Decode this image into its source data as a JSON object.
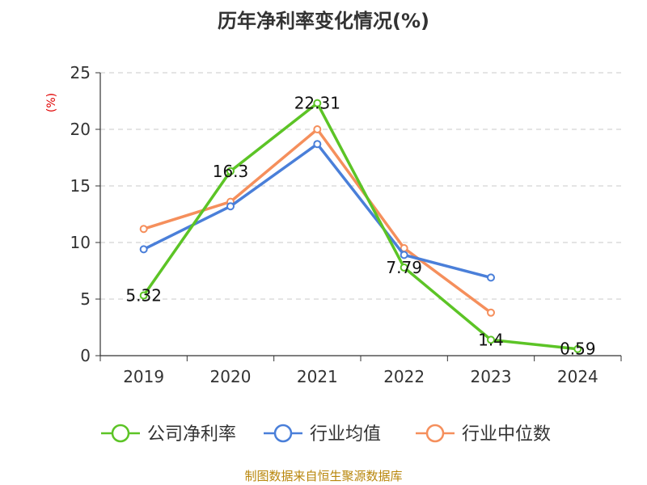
{
  "chart_data": {
    "type": "line",
    "title": "历年净利率变化情况(%)",
    "unit_label": "(%)",
    "categories": [
      "2019",
      "2020",
      "2021",
      "2022",
      "2023",
      "2024"
    ],
    "ylim": [
      0,
      25
    ],
    "yticks": [
      0,
      5,
      10,
      15,
      20,
      25
    ],
    "grid": true,
    "legend_position": "bottom",
    "series": [
      {
        "name": "公司净利率",
        "color": "#5cc426",
        "values": [
          5.32,
          16.3,
          22.31,
          7.79,
          1.4,
          0.59
        ],
        "labels": [
          "5.32",
          "16.3",
          "22.31",
          "7.79",
          "1.4",
          "0.59"
        ]
      },
      {
        "name": "行业均值",
        "color": "#4a7fd9",
        "values": [
          9.4,
          13.2,
          18.7,
          8.9,
          6.9,
          null
        ]
      },
      {
        "name": "行业中位数",
        "color": "#f58f5c",
        "values": [
          11.2,
          13.6,
          20.0,
          9.5,
          3.8,
          null
        ]
      }
    ]
  },
  "source_text": "制图数据来自恒生聚源数据库"
}
